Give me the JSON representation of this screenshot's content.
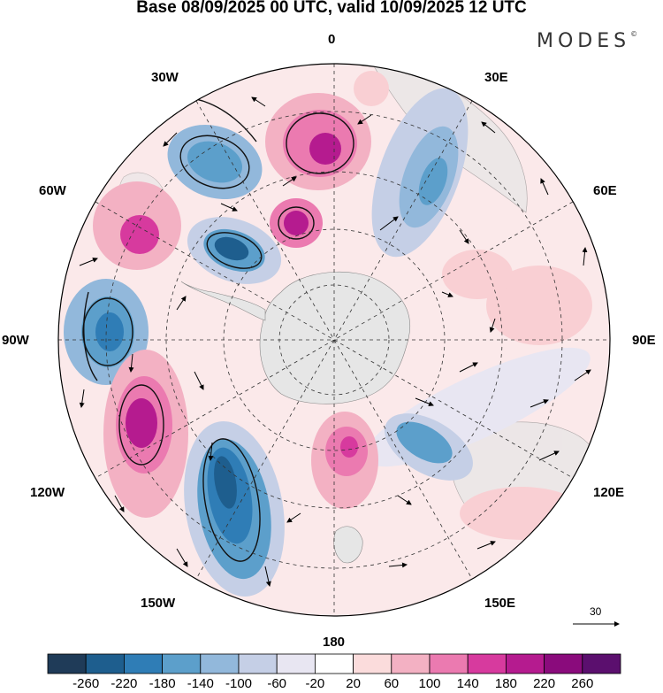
{
  "title": "Base 08/09/2025 00 UTC, valid 10/09/2025 12 UTC",
  "brand": "MODES",
  "brand_mark": "©",
  "map": {
    "projection": "south-polar-stereographic",
    "longitude_labels": {
      "top": "0",
      "bottom": "180",
      "left": "90W",
      "right": "90E",
      "upper_left_1": "30W",
      "upper_left_2": "60W",
      "upper_right_1": "30E",
      "upper_right_2": "60E",
      "lower_left_1": "120W",
      "lower_left_2": "150W",
      "lower_right_1": "120E",
      "lower_right_2": "150E"
    },
    "reference_vector": {
      "value": "30"
    }
  },
  "colorbar": {
    "ticks": [
      "-260",
      "-220",
      "-180",
      "-140",
      "-100",
      "-60",
      "-20",
      "20",
      "60",
      "100",
      "140",
      "180",
      "220",
      "260"
    ],
    "colors": [
      "#1f3b58",
      "#1e5e8e",
      "#2f7db6",
      "#5c9fcb",
      "#92b8db",
      "#c5cfe6",
      "#e8e6f2",
      "#ffffff",
      "#fbdcdc",
      "#f3b1c3",
      "#eb7ab0",
      "#d73a9e",
      "#b51b8f",
      "#8a0b7c",
      "#5b0f6e"
    ]
  },
  "colors": {
    "land": "#e6e6e6",
    "positive": "#e24a9c",
    "negative": "#2f7db6"
  }
}
